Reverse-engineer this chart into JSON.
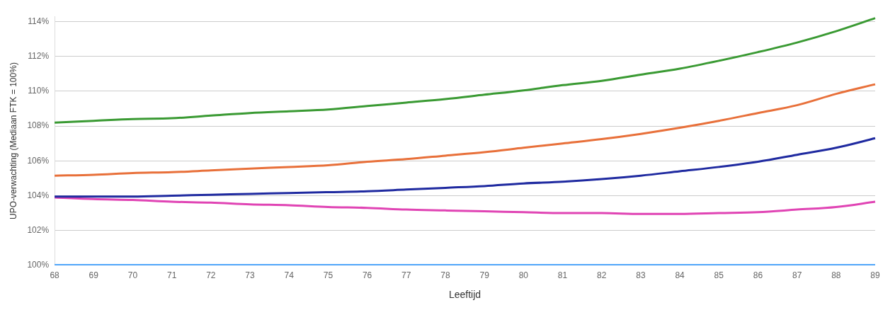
{
  "chart_data": {
    "type": "line",
    "xlabel": "Leeftijd",
    "ylabel": "UPO-verwachting (Mediaan FTK = 100%)",
    "categories": [
      "68",
      "69",
      "70",
      "71",
      "72",
      "73",
      "74",
      "75",
      "76",
      "77",
      "78",
      "79",
      "80",
      "81",
      "82",
      "83",
      "84",
      "85",
      "86",
      "87",
      "88",
      "89"
    ],
    "ylim": [
      100,
      114.3
    ],
    "yticks": [
      {
        "value": 100,
        "label": "100%"
      },
      {
        "value": 102,
        "label": "102%"
      },
      {
        "value": 104,
        "label": "104%"
      },
      {
        "value": 106,
        "label": "106%"
      },
      {
        "value": 108,
        "label": "108%"
      },
      {
        "value": 110,
        "label": "110%"
      },
      {
        "value": 112,
        "label": "112%"
      },
      {
        "value": 114,
        "label": "114%"
      }
    ],
    "grid": "y",
    "legend": false,
    "marker": "none",
    "line_style": "solid",
    "series": [
      {
        "color": "#3a9a33",
        "values": [
          108.2,
          108.3,
          108.4,
          108.45,
          108.6,
          108.75,
          108.85,
          108.95,
          109.15,
          109.35,
          109.55,
          109.8,
          110.05,
          110.35,
          110.6,
          110.95,
          111.3,
          111.75,
          112.25,
          112.8,
          113.45,
          114.2
        ]
      },
      {
        "color": "#e8703a",
        "values": [
          105.15,
          105.2,
          105.3,
          105.35,
          105.45,
          105.55,
          105.65,
          105.75,
          105.95,
          106.1,
          106.3,
          106.5,
          106.75,
          107.0,
          107.25,
          107.55,
          107.9,
          108.3,
          108.75,
          109.2,
          109.85,
          110.4
        ]
      },
      {
        "color": "#1f2aa0",
        "values": [
          103.95,
          103.95,
          103.95,
          104.0,
          104.05,
          104.1,
          104.15,
          104.2,
          104.25,
          104.35,
          104.45,
          104.55,
          104.7,
          104.8,
          104.95,
          105.15,
          105.4,
          105.65,
          105.95,
          106.35,
          106.75,
          107.3
        ]
      },
      {
        "color": "#e044b4",
        "values": [
          103.9,
          103.8,
          103.75,
          103.65,
          103.6,
          103.5,
          103.45,
          103.35,
          103.3,
          103.2,
          103.15,
          103.1,
          103.05,
          103.0,
          103.0,
          102.95,
          102.95,
          103.0,
          103.05,
          103.2,
          103.35,
          103.65
        ]
      },
      {
        "color": "#1e90ff",
        "values": [
          100,
          100,
          100,
          100,
          100,
          100,
          100,
          100,
          100,
          100,
          100,
          100,
          100,
          100,
          100,
          100,
          100,
          100,
          100,
          100,
          100,
          100
        ]
      }
    ]
  }
}
